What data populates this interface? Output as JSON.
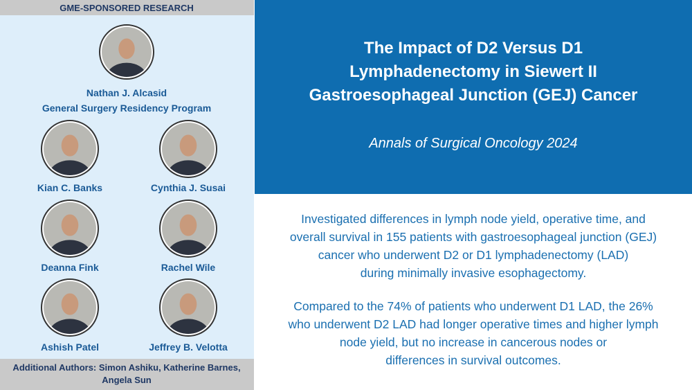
{
  "header": {
    "label": "GME-SPONSORED RESEARCH"
  },
  "featured": {
    "name": "Nathan J. Alcasid",
    "program": "General Surgery Residency Program"
  },
  "people": [
    "Kian C. Banks",
    "Cynthia J. Susai",
    "Deanna Fink",
    "Rachel Wile",
    "Ashish Patel",
    "Jeffrey B. Velotta"
  ],
  "additional_authors": [
    "Additional Authors: Simon Ashiku, Katherine Barnes,",
    "Angela Sun"
  ],
  "title": [
    "The Impact of D2 Versus D1",
    "Lymphadenectomy in Siewert II",
    "Gastroesophageal Junction (GEJ) Cancer"
  ],
  "journal": "Annals of Surgical Oncology 2024",
  "paragraphs": [
    [
      "Investigated differences in lymph node yield, operative time, and",
      "overall survival in 155 patients with gastroesophageal junction (GEJ)",
      "cancer who underwent D2 or D1 lymphadenectomy (LAD)",
      "during minimally invasive esophagectomy."
    ],
    [
      "Compared to the 74% of patients who underwent D1 LAD, the 26%",
      "who underwent D2 LAD had longer operative times and higher lymph",
      "node yield, but no increase in cancerous nodes or",
      "differences in survival outcomes."
    ]
  ]
}
